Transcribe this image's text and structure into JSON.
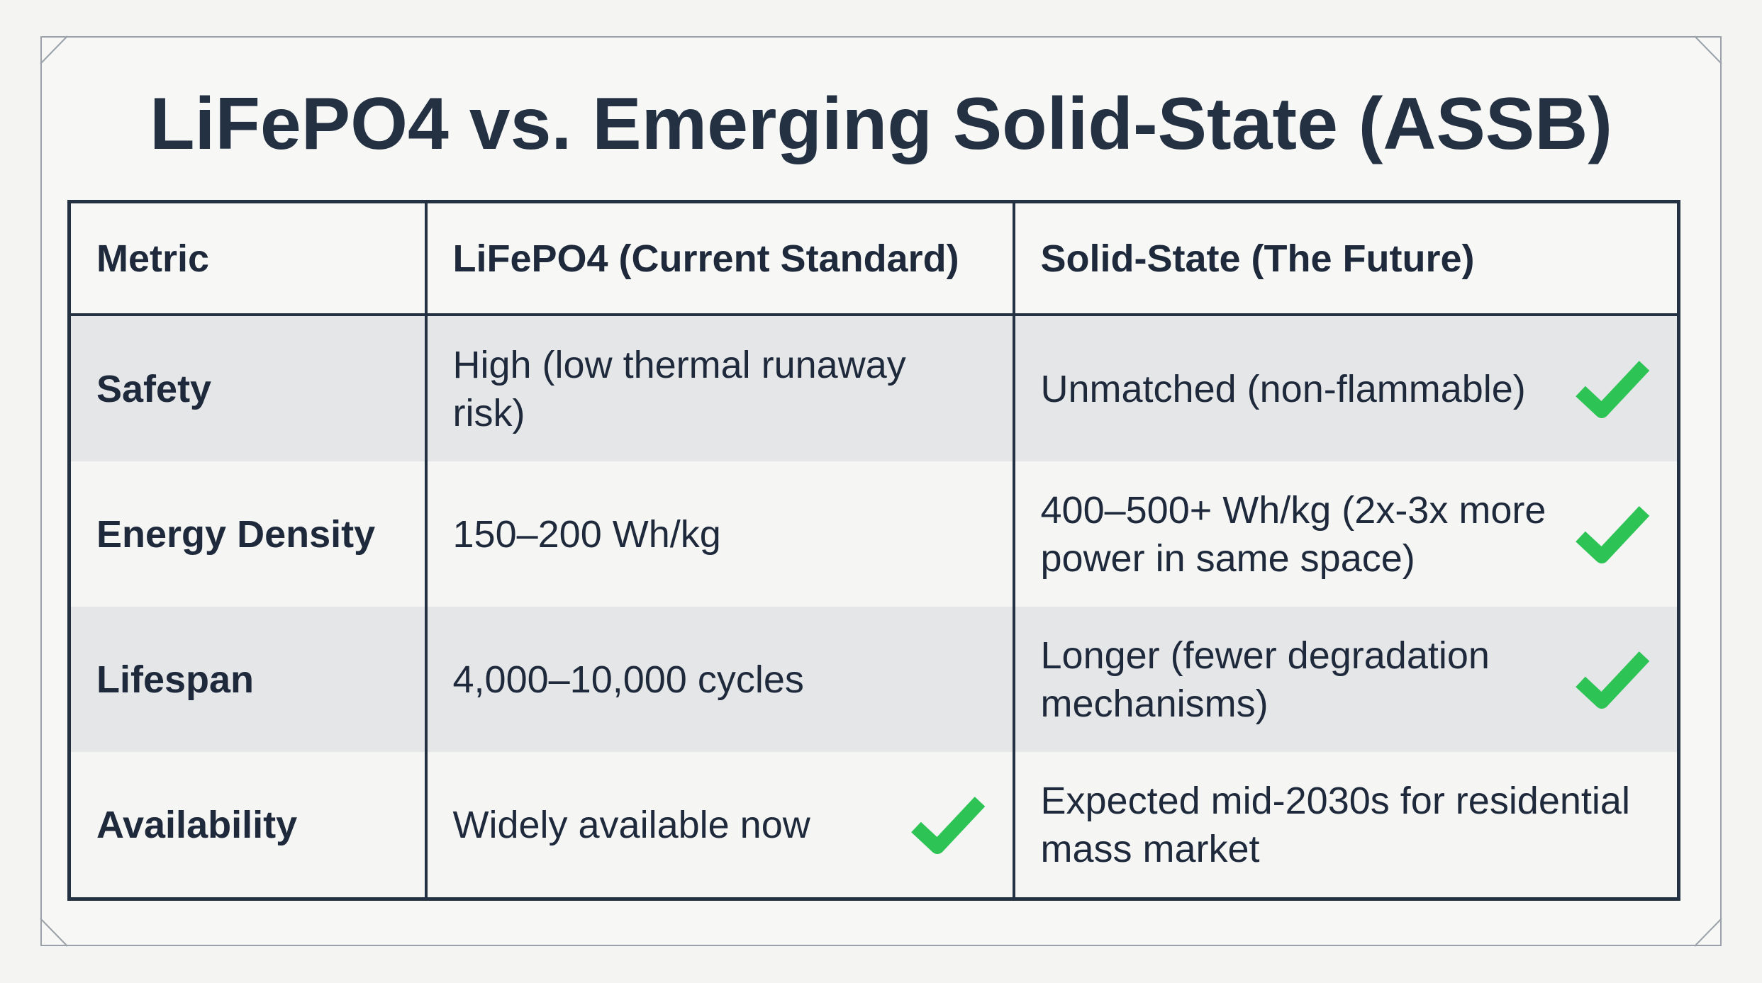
{
  "title": "LiFePO4 vs. Emerging Solid-State (ASSB)",
  "table": {
    "header": [
      "Metric",
      "LiFePO4 (Current Standard)",
      "Solid-State (The Future)"
    ],
    "rows": [
      [
        "Safety",
        "High (low thermal runaway risk)",
        "Unmatched (non-flammable)"
      ],
      [
        "Energy Density",
        "150–200 Wh/kg",
        "400–500+ Wh/kg (2x-3x more power in same space)"
      ],
      [
        "Lifespan",
        "4,000–10,000 cycles",
        "Longer (fewer degradation mechanisms)"
      ],
      [
        "Availability",
        "Widely available now",
        "Expected mid-2030s for residential mass market"
      ]
    ]
  }
}
